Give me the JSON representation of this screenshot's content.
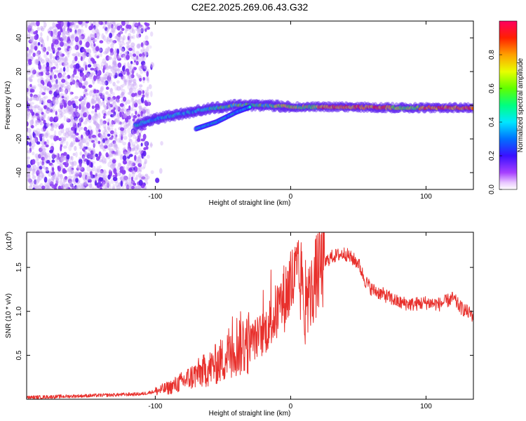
{
  "title": "C2E2.2025.269.06.43.G32",
  "chart_data": [
    {
      "type": "heatmap",
      "xlabel": "Height of straight line (km)",
      "ylabel": "Frequency (Hz)",
      "xlim": [
        -195,
        135
      ],
      "ylim": [
        -50,
        50
      ],
      "xticks": [
        -100,
        0,
        100
      ],
      "yticks": [
        -40,
        -20,
        0,
        20,
        40
      ],
      "colorbar": {
        "label": "Normalized spectral amplitude",
        "range": [
          0,
          1
        ],
        "ticks": [
          "0.0",
          "0.2",
          "0.4",
          "0.6",
          "0.8"
        ],
        "colormap": "rainbow (violet → red)"
      },
      "features": [
        {
          "name": "noise",
          "x_range": [
            -195,
            -105
          ],
          "y_range": [
            -50,
            50
          ],
          "amplitude": 0.15
        },
        {
          "name": "main-trace",
          "points": [
            [
              -115,
              -12
            ],
            [
              -100,
              -8
            ],
            [
              -80,
              -5
            ],
            [
              -60,
              -2
            ],
            [
              -40,
              0
            ],
            [
              -20,
              0
            ],
            [
              0,
              -1
            ],
            [
              40,
              -1
            ],
            [
              80,
              -1.5
            ],
            [
              135,
              -1.5
            ]
          ]
        },
        {
          "name": "secondary-trace",
          "points": [
            [
              -70,
              -14
            ],
            [
              -55,
              -10
            ],
            [
              -40,
              -4
            ],
            [
              -30,
              -1
            ]
          ]
        }
      ]
    },
    {
      "type": "line",
      "xlabel": "Height of straight line (km)",
      "ylabel": "SNR (10 * v/v)",
      "yscale_label": "(x10",
      "yscale_exponent": "4",
      "xlim": [
        -195,
        135
      ],
      "ylim": [
        0,
        1.9
      ],
      "xticks": [
        -100,
        0,
        100
      ],
      "yticks": [
        0.5,
        1.0,
        1.5
      ],
      "color": "#e8302c",
      "series": [
        {
          "values_envelope": {
            "x": [
              -195,
              -150,
              -110,
              -100,
              -90,
              -80,
              -70,
              -60,
              -50,
              -45,
              -40,
              -30,
              -20,
              -10,
              0,
              5,
              10,
              15,
              20,
              25,
              30,
              40,
              50,
              55,
              60,
              70,
              80,
              90,
              100,
              110,
              120,
              125,
              130,
              135
            ],
            "y": [
              0.02,
              0.04,
              0.06,
              0.09,
              0.13,
              0.2,
              0.28,
              0.35,
              0.45,
              0.55,
              0.62,
              0.65,
              0.75,
              1.0,
              1.3,
              1.4,
              1.05,
              1.2,
              1.45,
              1.55,
              1.62,
              1.66,
              1.55,
              1.35,
              1.25,
              1.18,
              1.1,
              1.08,
              1.1,
              1.08,
              1.15,
              1.05,
              1.0,
              0.95
            ]
          }
        }
      ]
    }
  ]
}
